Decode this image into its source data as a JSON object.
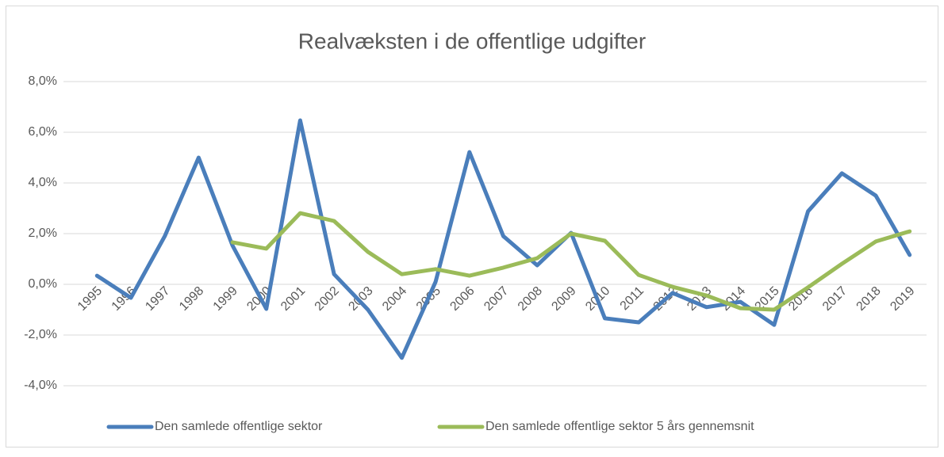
{
  "chart_data": {
    "type": "line",
    "title": "Realvæksten i de offentlige udgifter",
    "categories": [
      "1995",
      "1996",
      "1997",
      "1998",
      "1999",
      "2000",
      "2001",
      "2002",
      "2003",
      "2004",
      "2005",
      "2006",
      "2007",
      "2008",
      "2009",
      "2010",
      "2011",
      "2012",
      "2013",
      "2014",
      "2015",
      "2016",
      "2017",
      "2018",
      "2019"
    ],
    "series": [
      {
        "name": "Den samlede offentlige sektor",
        "color": "#4a7ebb",
        "values": [
          0.34,
          -0.53,
          1.9,
          5.0,
          1.53,
          -0.97,
          6.47,
          0.4,
          -1.0,
          -2.9,
          0.1,
          5.22,
          1.9,
          0.75,
          2.03,
          -1.34,
          -1.5,
          -0.34,
          -0.9,
          -0.69,
          -1.6,
          2.88,
          4.38,
          3.5,
          1.16
        ]
      },
      {
        "name": "Den samlede offentlige sektor 5 års gennemsnit",
        "color": "#9bbb59",
        "values": [
          null,
          null,
          null,
          null,
          1.66,
          1.41,
          2.81,
          2.5,
          1.28,
          0.4,
          0.6,
          0.34,
          0.66,
          1.03,
          2.0,
          1.72,
          0.37,
          -0.1,
          -0.44,
          -0.94,
          -1.0,
          -0.12,
          0.81,
          1.69,
          2.09
        ]
      }
    ],
    "ylim": [
      -4,
      8
    ],
    "yticks": [
      {
        "value": -4,
        "label": "-4,0%"
      },
      {
        "value": -2,
        "label": "-2,0%"
      },
      {
        "value": 0,
        "label": "0,0%"
      },
      {
        "value": 2,
        "label": "2,0%"
      },
      {
        "value": 4,
        "label": "4,0%"
      },
      {
        "value": 6,
        "label": "6,0%"
      },
      {
        "value": 8,
        "label": "8,0%"
      }
    ],
    "grid": true,
    "legend": "bottom"
  }
}
